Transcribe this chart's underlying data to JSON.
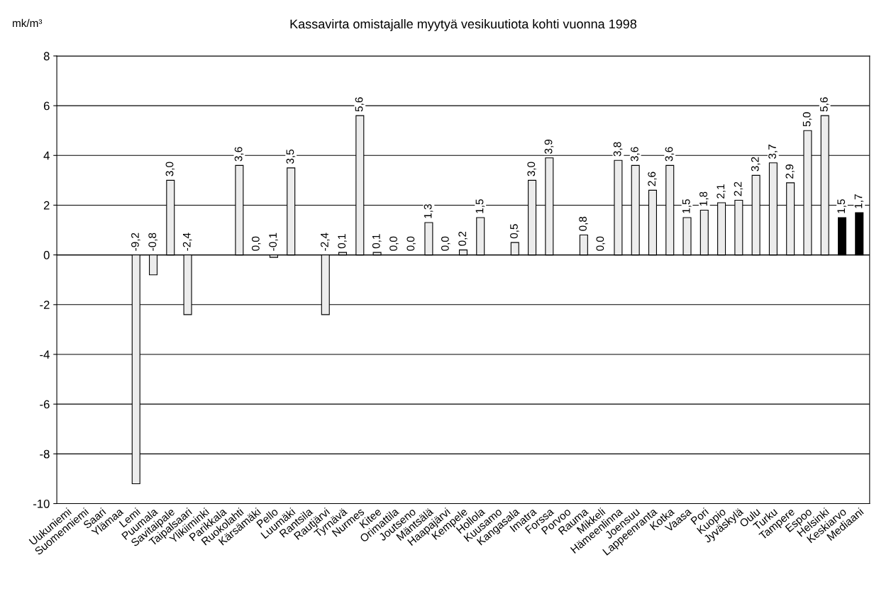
{
  "chart_data": {
    "type": "bar",
    "title": "Kassavirta omistajalle myytyä vesikuutiota kohti vuonna 1998",
    "ylabel": "mk/m³",
    "categories": [
      "Uukuniemi",
      "Suomenniemi",
      "Saari",
      "Ylämaa",
      "Lemi",
      "Puumala",
      "Savitaipale",
      "Taipalsaari",
      "Ylikiiminki",
      "Parikkala",
      "Ruokolahti",
      "Kärsämäki",
      "Pello",
      "Luumäki",
      "Rantsila",
      "Rautjärvi",
      "Tyrnävä",
      "Nurmes",
      "Kitee",
      "Orimattila",
      "Joutseno",
      "Mäntsälä",
      "Haapajärvi",
      "Kempele",
      "Hollola",
      "Kuusamo",
      "Kangasala",
      "Imatra",
      "Forssa",
      "Porvoo",
      "Rauma",
      "Mikkeli",
      "Hämeenlinna",
      "Joensuu",
      "Lappeenranta",
      "Kotka",
      "Vaasa",
      "Pori",
      "Kuopio",
      "Jyväskylä",
      "Oulu",
      "Turku",
      "Tampere",
      "Espoo",
      "Helsinki",
      "Keskiarvo",
      "Mediaani"
    ],
    "values": [
      null,
      null,
      null,
      null,
      -9.2,
      -0.8,
      3.0,
      -2.4,
      null,
      null,
      3.6,
      0.0,
      -0.1,
      3.5,
      null,
      -2.4,
      0.1,
      5.6,
      0.1,
      0.0,
      0.0,
      1.3,
      0.0,
      0.2,
      1.5,
      null,
      0.5,
      3.0,
      3.9,
      null,
      0.8,
      0.0,
      3.8,
      3.6,
      2.6,
      3.6,
      1.5,
      1.8,
      2.1,
      2.2,
      3.2,
      3.7,
      2.9,
      5.0,
      5.6,
      1.5,
      1.7
    ],
    "value_labels": [
      null,
      null,
      null,
      null,
      "-9,2",
      "-0,8",
      "3,0",
      "-2,4",
      null,
      null,
      "3,6",
      "0,0",
      "-0,1",
      "3,5",
      null,
      "-2,4",
      "0,1",
      "5,6",
      "0,1",
      "0,0",
      "0,0",
      "1,3",
      "0,0",
      "0,2",
      "1,5",
      null,
      "0,5",
      "3,0",
      "3,9",
      null,
      "0,8",
      "0,0",
      "3,8",
      "3,6",
      "2,6",
      "3,6",
      "1,5",
      "1,8",
      "2,1",
      "2,2",
      "3,2",
      "3,7",
      "2,9",
      "5,0",
      "5,6",
      "1,5",
      "1,7"
    ],
    "colors": [
      "#ececec",
      "#ececec",
      "#ececec",
      "#ececec",
      "#ececec",
      "#ececec",
      "#ececec",
      "#ececec",
      "#ececec",
      "#ececec",
      "#ececec",
      "#ececec",
      "#ececec",
      "#ececec",
      "#ececec",
      "#ececec",
      "#ececec",
      "#ececec",
      "#ececec",
      "#ececec",
      "#ececec",
      "#ececec",
      "#ececec",
      "#ececec",
      "#ececec",
      "#ececec",
      "#ececec",
      "#ececec",
      "#ececec",
      "#ececec",
      "#ececec",
      "#ececec",
      "#ececec",
      "#ececec",
      "#ececec",
      "#ececec",
      "#ececec",
      "#ececec",
      "#ececec",
      "#ececec",
      "#ececec",
      "#ececec",
      "#ececec",
      "#ececec",
      "#ececec",
      "#000000",
      "#000000"
    ],
    "ylim": [
      -10,
      8
    ],
    "yticks": [
      -10,
      -8,
      -6,
      -4,
      -2,
      0,
      2,
      4,
      6,
      8
    ],
    "grid": "y"
  }
}
